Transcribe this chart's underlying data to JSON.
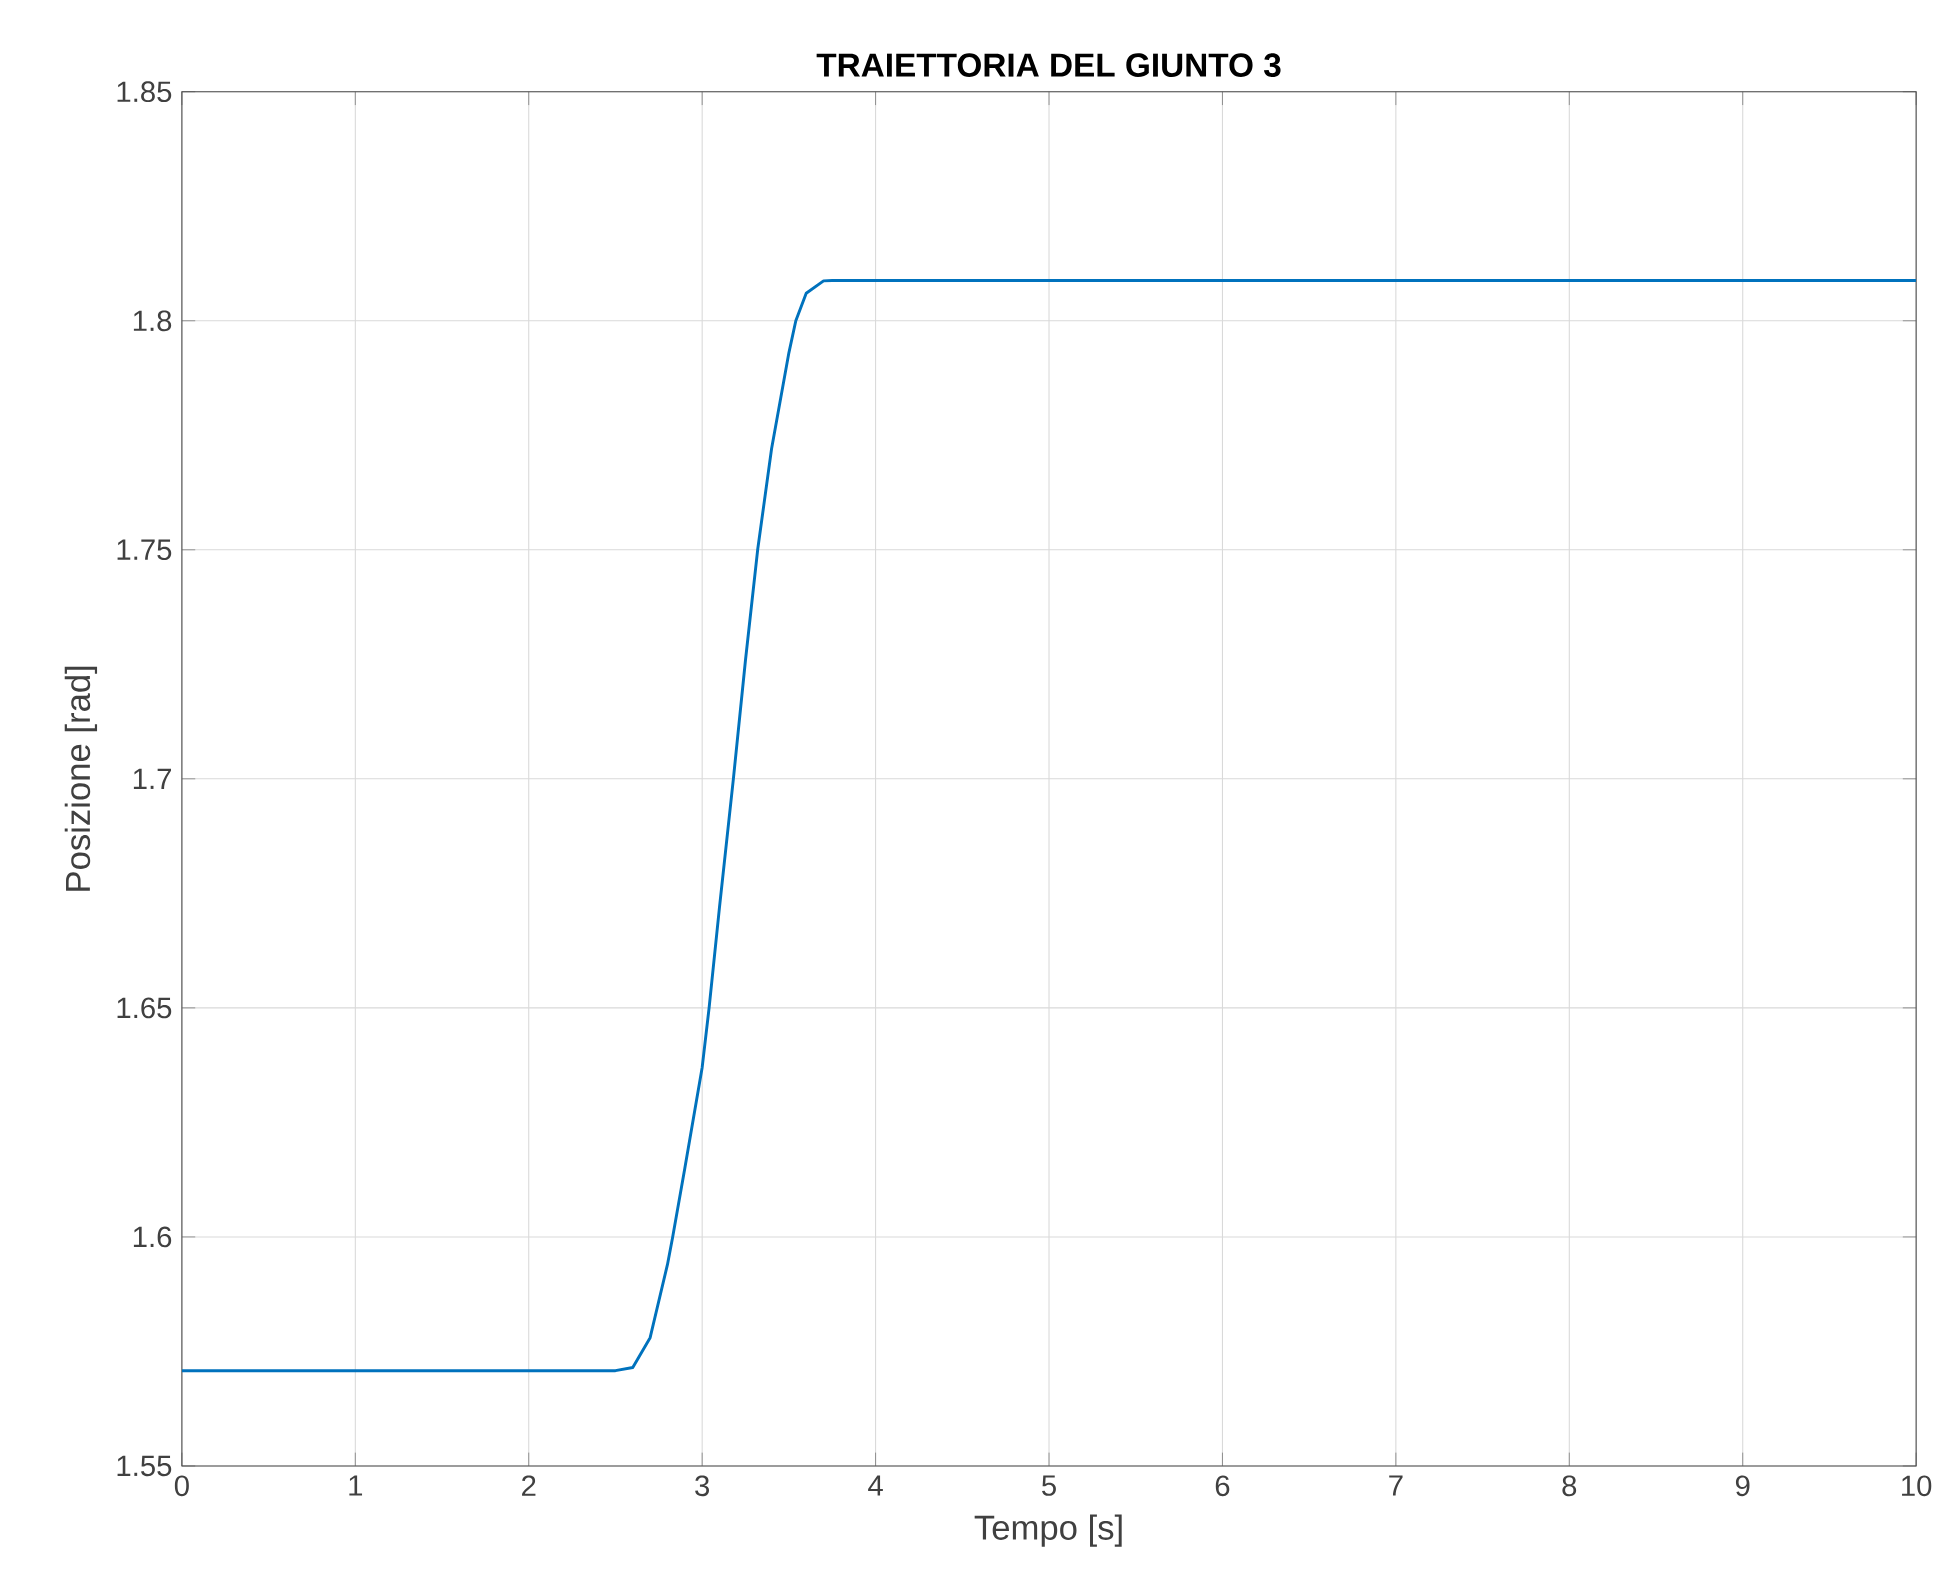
{
  "chart_data": {
    "type": "line",
    "title": "TRAIETTORIA DEL GIUNTO 3",
    "xlabel": "Tempo [s]",
    "ylabel": "Posizione [rad]",
    "x": [
      0,
      1,
      2,
      2.5,
      2.6,
      2.7,
      2.8,
      2.83,
      2.9,
      3.0,
      3.04,
      3.1,
      3.18,
      3.25,
      3.32,
      3.4,
      3.5,
      3.54,
      3.6,
      3.7,
      3.75,
      4,
      5,
      6,
      7,
      8,
      9,
      10
    ],
    "series": [
      {
        "color": "#0072bd",
        "values": [
          1.5708,
          1.5708,
          1.5708,
          1.5708,
          1.5715,
          1.578,
          1.594,
          1.6,
          1.615,
          1.637,
          1.65,
          1.672,
          1.7,
          1.726,
          1.75,
          1.772,
          1.793,
          1.8,
          1.806,
          1.8087,
          1.8088,
          1.8088,
          1.8088,
          1.8088,
          1.8088,
          1.8088,
          1.8088,
          1.8088
        ]
      }
    ],
    "xlim": [
      0,
      10
    ],
    "xticks": [
      0,
      1,
      2,
      3,
      4,
      5,
      6,
      7,
      8,
      9,
      10
    ],
    "ylim": [
      1.55,
      1.85
    ],
    "yticks": [
      1.55,
      1.6,
      1.65,
      1.7,
      1.75,
      1.8,
      1.85
    ],
    "grid": true,
    "line_style": "solid",
    "marker": "none"
  }
}
